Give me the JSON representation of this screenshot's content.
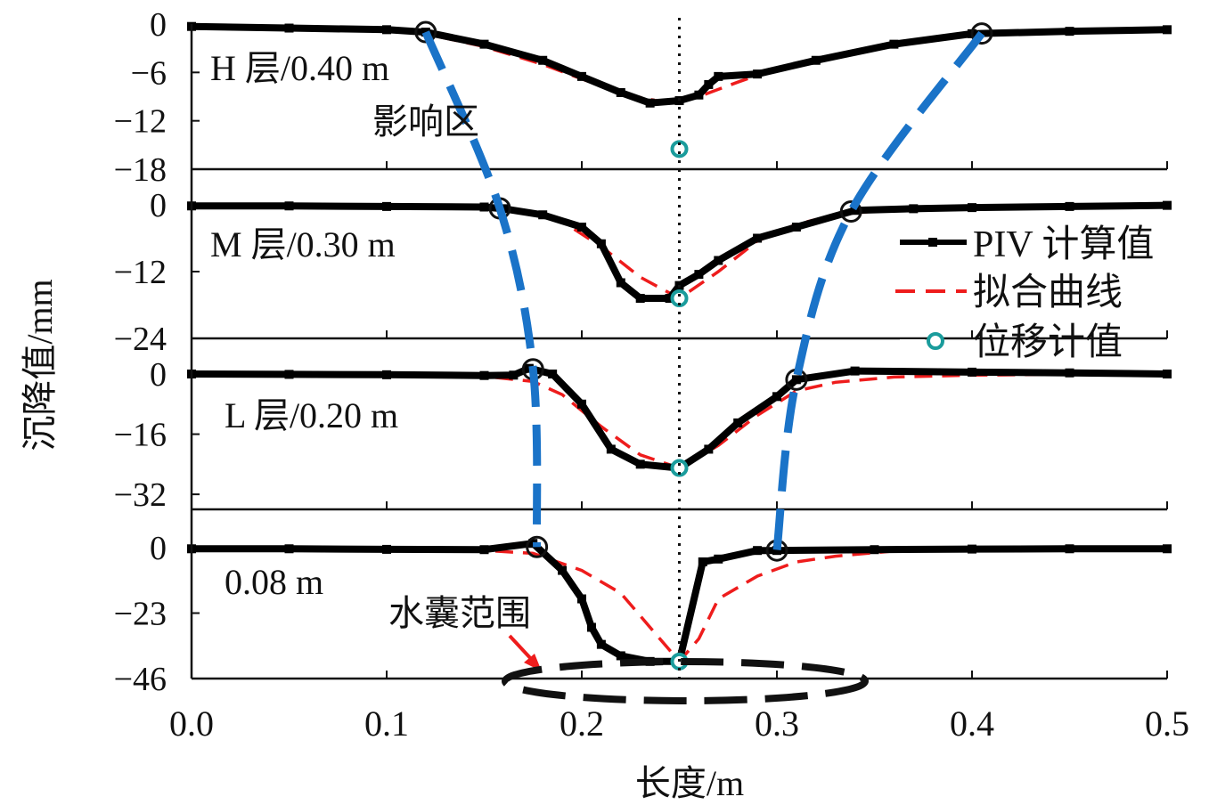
{
  "chart_data": {
    "type": "line",
    "xlabel": "长度/m",
    "ylabel": "沉降值/mm",
    "xlim": [
      0.0,
      0.5
    ],
    "x_ticks": [
      "0.0",
      "0.1",
      "0.2",
      "0.3",
      "0.4",
      "0.5"
    ],
    "legend": {
      "position": "right",
      "entries": [
        {
          "key": "piv",
          "label": "PIV 计算值",
          "color": "#000000"
        },
        {
          "key": "fit",
          "label": "拟合曲线",
          "color": "#ee1c1c"
        },
        {
          "key": "gauge",
          "label": "位移计值",
          "color": "#1a9c9c"
        }
      ]
    },
    "annotations": {
      "influence_zone": "影响区",
      "water_bag_range": "水囊范围"
    },
    "influence_color": "#1a73c8",
    "panels": [
      {
        "label": "H 层/0.40 m",
        "ylim": [
          -18,
          0
        ],
        "y_ticks": [
          "0",
          "−6",
          "−12",
          "−18"
        ],
        "y_tick_values": [
          0,
          -6,
          -12,
          -18
        ],
        "piv": {
          "x": [
            0.0,
            0.05,
            0.1,
            0.12,
            0.15,
            0.18,
            0.2,
            0.22,
            0.235,
            0.25,
            0.26,
            0.265,
            0.27,
            0.29,
            0.32,
            0.36,
            0.4,
            0.45,
            0.5
          ],
          "y": [
            -0.3,
            -0.5,
            -0.7,
            -1.0,
            -2.5,
            -4.5,
            -6.5,
            -8.5,
            -9.8,
            -9.5,
            -8.8,
            -7.5,
            -6.5,
            -6.2,
            -4.5,
            -2.5,
            -1.2,
            -0.9,
            -0.7
          ]
        },
        "fit": {
          "x": [
            0.0,
            0.05,
            0.1,
            0.12,
            0.15,
            0.18,
            0.2,
            0.22,
            0.24,
            0.25,
            0.26,
            0.28,
            0.3,
            0.33,
            0.36,
            0.4,
            0.45,
            0.5
          ],
          "y": [
            -0.4,
            -0.6,
            -0.9,
            -1.2,
            -2.8,
            -5.0,
            -6.8,
            -8.6,
            -9.6,
            -9.6,
            -9.0,
            -7.2,
            -5.5,
            -3.8,
            -2.3,
            -1.1,
            -0.8,
            -0.6
          ]
        },
        "gauge": [
          {
            "x": 0.25,
            "y": -15.5
          }
        ],
        "influence_x": [
          0.12,
          0.405
        ]
      },
      {
        "label": "M 层/0.30 m",
        "ylim": [
          -24,
          0
        ],
        "y_ticks": [
          "0",
          "−12",
          "−24"
        ],
        "y_tick_values": [
          0,
          -12,
          -24
        ],
        "piv": {
          "x": [
            0.0,
            0.05,
            0.1,
            0.15,
            0.16,
            0.18,
            0.2,
            0.21,
            0.22,
            0.23,
            0.245,
            0.25,
            0.26,
            0.27,
            0.29,
            0.31,
            0.34,
            0.37,
            0.4,
            0.45,
            0.5
          ],
          "y": [
            -0.2,
            -0.2,
            -0.3,
            -0.4,
            -0.7,
            -1.8,
            -4.0,
            -7.0,
            -14.0,
            -16.8,
            -16.8,
            -14.5,
            -12.5,
            -10.0,
            -6.0,
            -4.0,
            -1.0,
            -0.7,
            -0.5,
            -0.3,
            -0.1
          ]
        },
        "fit": {
          "x": [
            0.0,
            0.05,
            0.1,
            0.15,
            0.17,
            0.19,
            0.21,
            0.23,
            0.25,
            0.27,
            0.29,
            0.31,
            0.33,
            0.36,
            0.4,
            0.45,
            0.5
          ],
          "y": [
            -0.2,
            -0.2,
            -0.3,
            -0.4,
            -1.0,
            -3.0,
            -7.5,
            -13.0,
            -16.8,
            -12.0,
            -6.5,
            -3.5,
            -1.8,
            -0.8,
            -0.4,
            -0.2,
            -0.1
          ]
        },
        "gauge": [
          {
            "x": 0.25,
            "y": -16.8
          }
        ],
        "influence_x": [
          0.158,
          0.338
        ]
      },
      {
        "label": "L 层/0.20 m",
        "ylim": [
          -36,
          0
        ],
        "y_ticks": [
          "0",
          "−16",
          "−32"
        ],
        "y_tick_values": [
          0,
          -16,
          -32
        ],
        "piv": {
          "x": [
            0.0,
            0.05,
            0.1,
            0.15,
            0.165,
            0.173,
            0.185,
            0.2,
            0.215,
            0.23,
            0.25,
            0.265,
            0.28,
            0.3,
            0.31,
            0.34,
            0.4,
            0.45,
            0.5
          ],
          "y": [
            0.0,
            -0.1,
            -0.2,
            -0.4,
            -0.3,
            1.5,
            0.0,
            -8.0,
            -20.0,
            -24.0,
            -25.0,
            -20.0,
            -13.0,
            -6.0,
            -1.5,
            0.8,
            0.5,
            0.3,
            0.0
          ]
        },
        "fit": {
          "x": [
            0.0,
            0.05,
            0.1,
            0.15,
            0.175,
            0.19,
            0.21,
            0.23,
            0.25,
            0.27,
            0.29,
            0.31,
            0.33,
            0.36,
            0.4,
            0.45,
            0.5
          ],
          "y": [
            0.0,
            -0.2,
            -0.4,
            -0.6,
            -2.0,
            -5.5,
            -14.0,
            -21.5,
            -25.0,
            -19.0,
            -11.0,
            -4.5,
            -2.2,
            -0.8,
            -0.3,
            -0.1,
            0.0
          ]
        },
        "gauge": [
          {
            "x": 0.25,
            "y": -25.0
          }
        ],
        "influence_x": [
          0.175,
          0.31
        ]
      },
      {
        "label": "0.08 m",
        "ylim": [
          -46,
          0
        ],
        "y_ticks": [
          "0",
          "−23",
          "−46"
        ],
        "y_tick_values": [
          0,
          -23,
          -46
        ],
        "piv": {
          "x": [
            0.0,
            0.05,
            0.1,
            0.15,
            0.175,
            0.19,
            0.2,
            0.205,
            0.21,
            0.22,
            0.235,
            0.25,
            0.262,
            0.27,
            0.29,
            0.3,
            0.35,
            0.4,
            0.45,
            0.5
          ],
          "y": [
            -0.4,
            -0.4,
            -0.6,
            -0.7,
            1.5,
            -8.0,
            -18.0,
            -28.0,
            -34.0,
            -38.0,
            -40.0,
            -40.0,
            -5.0,
            -4.0,
            -1.0,
            -1.0,
            -0.7,
            -0.5,
            -0.4,
            -0.4
          ]
        },
        "fit": {
          "x": [
            0.0,
            0.05,
            0.1,
            0.15,
            0.175,
            0.2,
            0.22,
            0.24,
            0.25,
            0.26,
            0.27,
            0.29,
            0.31,
            0.33,
            0.36,
            0.4,
            0.45,
            0.5
          ],
          "y": [
            -0.4,
            -0.5,
            -0.7,
            -1.0,
            -2.0,
            -8.0,
            -16.0,
            -32.0,
            -40.0,
            -32.0,
            -18.0,
            -10.0,
            -5.0,
            -3.0,
            -1.2,
            -0.6,
            -0.4,
            -0.3
          ]
        },
        "gauge": [
          {
            "x": 0.25,
            "y": -40.0
          }
        ],
        "influence_x": [
          0.177,
          0.3
        ]
      }
    ]
  }
}
